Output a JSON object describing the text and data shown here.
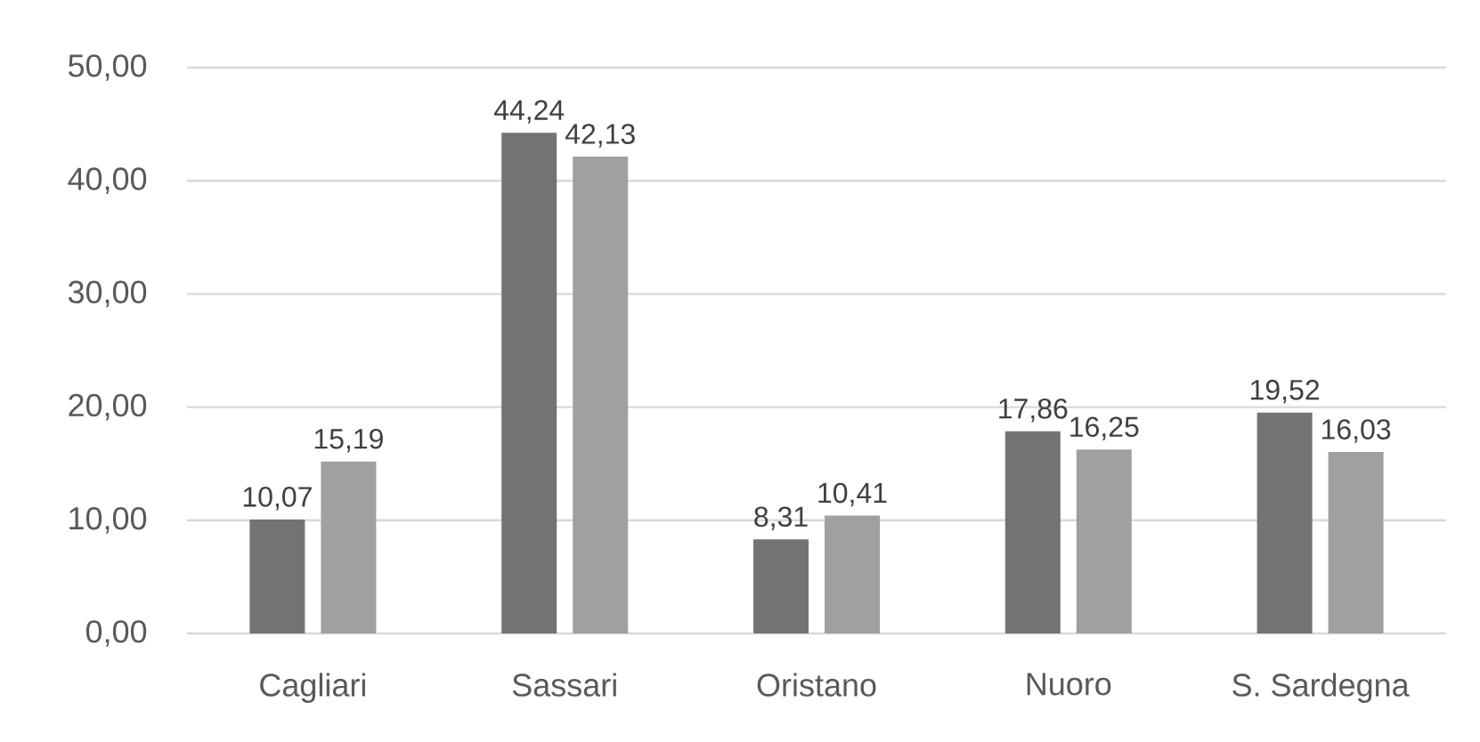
{
  "chart_data": {
    "type": "bar",
    "categories": [
      "Cagliari",
      "Sassari",
      "Oristano",
      "Nuoro",
      "S. Sardegna"
    ],
    "series": [
      {
        "color": "#737373",
        "values": [
          10.07,
          44.24,
          8.31,
          17.86,
          19.52
        ],
        "value_labels": [
          "10,07",
          "44,24",
          "8,31",
          "17,86",
          "19,52"
        ]
      },
      {
        "color": "#a0a0a0",
        "values": [
          15.19,
          42.13,
          10.41,
          16.25,
          16.03
        ],
        "value_labels": [
          "15,19",
          "42,13",
          "10,41",
          "16,25",
          "16,03"
        ]
      }
    ],
    "ylim": [
      0,
      50
    ],
    "yticks": [
      {
        "value": 0,
        "label": "0,00"
      },
      {
        "value": 10,
        "label": "10,00"
      },
      {
        "value": 20,
        "label": "20,00"
      },
      {
        "value": 30,
        "label": "30,00"
      },
      {
        "value": 40,
        "label": "40,00"
      },
      {
        "value": 50,
        "label": "50,00"
      }
    ],
    "grid": "y"
  }
}
